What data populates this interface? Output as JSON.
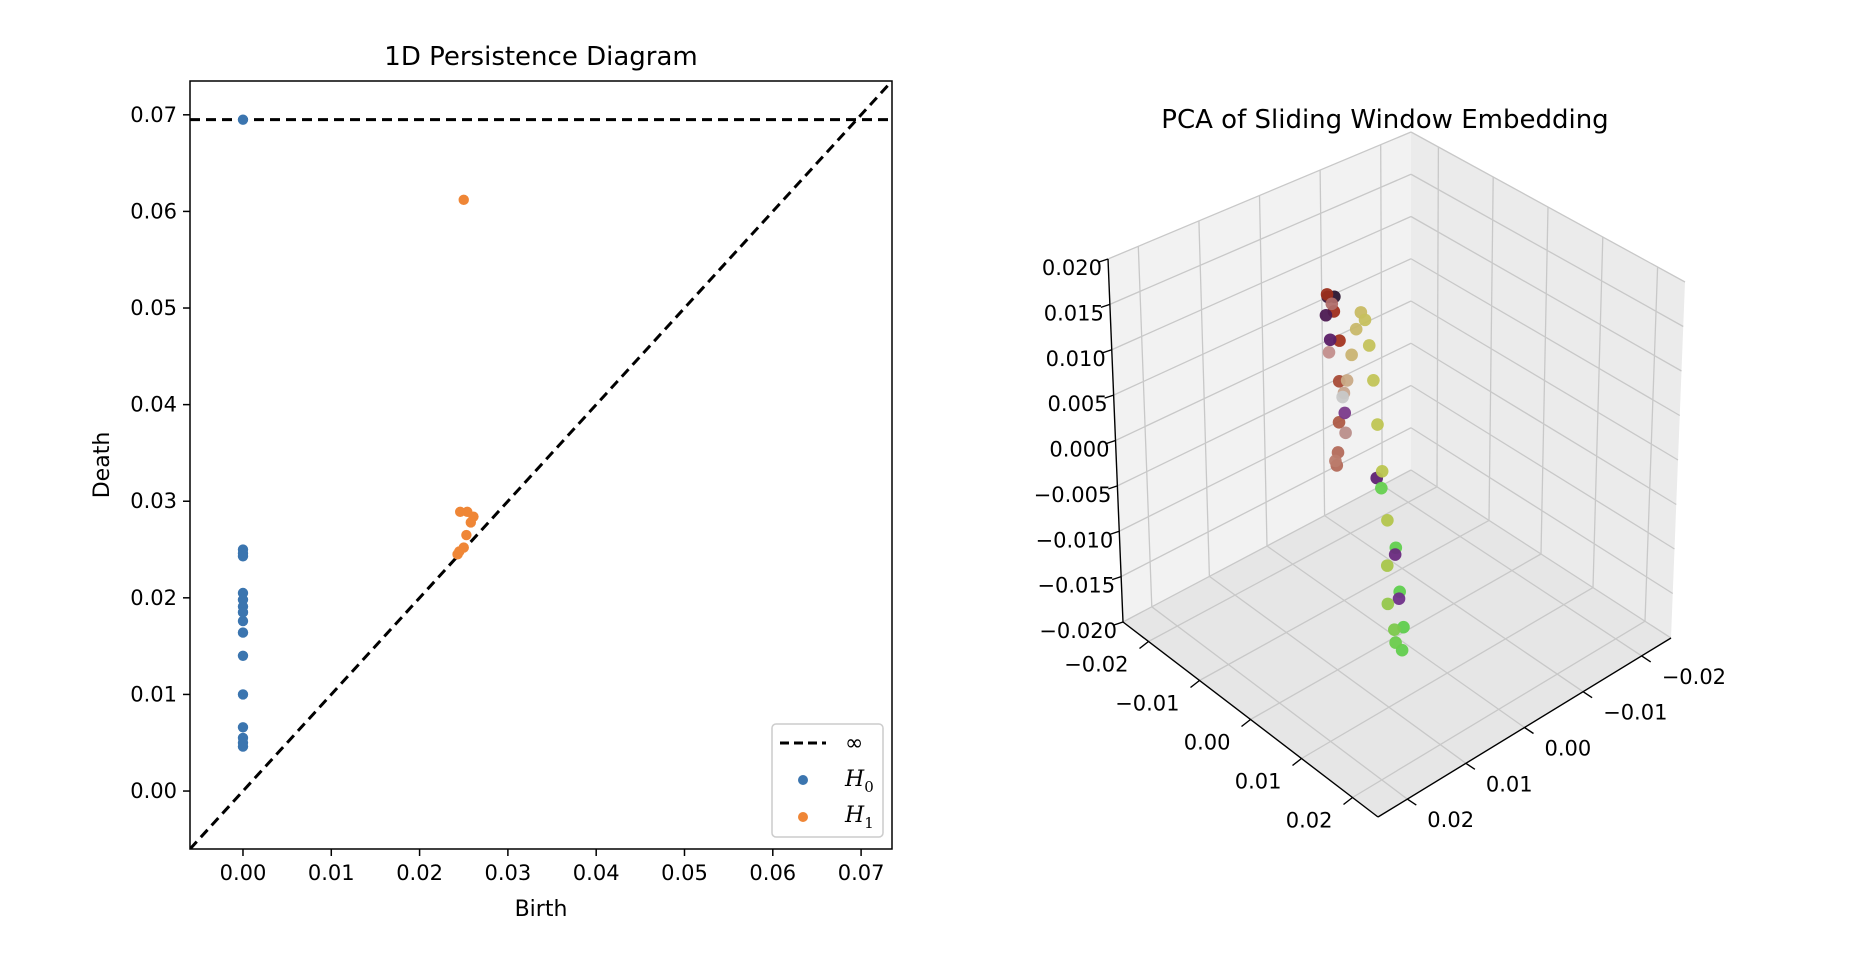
{
  "colors": {
    "h0": "#3b75af",
    "h1": "#ef8636",
    "axis": "#000000",
    "pane_left": "#f2f2f2",
    "pane_right": "#ebebeb",
    "pane_floor": "#e6e6e6",
    "grid3d": "#c8c8c8"
  },
  "chart_data": [
    {
      "type": "scatter",
      "title": "1D Persistence Diagram",
      "xlabel": "Birth",
      "ylabel": "Death",
      "xlim": [
        -0.006,
        0.0735
      ],
      "ylim": [
        -0.006,
        0.0735
      ],
      "xticks": [
        0.0,
        0.01,
        0.02,
        0.03,
        0.04,
        0.05,
        0.06,
        0.07
      ],
      "yticks": [
        0.0,
        0.01,
        0.02,
        0.03,
        0.04,
        0.05,
        0.06,
        0.07
      ],
      "xtick_labels": [
        "0.00",
        "0.01",
        "0.02",
        "0.03",
        "0.04",
        "0.05",
        "0.06",
        "0.07"
      ],
      "ytick_labels": [
        "0.00",
        "0.01",
        "0.02",
        "0.03",
        "0.04",
        "0.05",
        "0.06",
        "0.07"
      ],
      "infinity_line": 0.0695,
      "diagonal": true,
      "legend_position": "lower-right",
      "legend": [
        {
          "label": "∞",
          "kind": "dashed-line"
        },
        {
          "label": "H",
          "subscript": "0",
          "kind": "point",
          "series": "H0"
        },
        {
          "label": "H",
          "subscript": "1",
          "kind": "point",
          "series": "H1"
        }
      ],
      "series": [
        {
          "name": "H0",
          "points": [
            [
              0.0,
              0.0695
            ],
            [
              0.0,
              0.025
            ],
            [
              0.0,
              0.0246
            ],
            [
              0.0,
              0.0243
            ],
            [
              0.0,
              0.0205
            ],
            [
              0.0,
              0.0198
            ],
            [
              0.0,
              0.0191
            ],
            [
              0.0,
              0.0185
            ],
            [
              0.0,
              0.0176
            ],
            [
              0.0,
              0.0164
            ],
            [
              0.0,
              0.014
            ],
            [
              0.0,
              0.01
            ],
            [
              0.0,
              0.0066
            ],
            [
              0.0,
              0.0055
            ],
            [
              0.0,
              0.005
            ],
            [
              0.0,
              0.0046
            ]
          ]
        },
        {
          "name": "H1",
          "points": [
            [
              0.025,
              0.0612
            ],
            [
              0.0246,
              0.0289
            ],
            [
              0.0254,
              0.0289
            ],
            [
              0.0261,
              0.0284
            ],
            [
              0.0258,
              0.0278
            ],
            [
              0.0253,
              0.0265
            ],
            [
              0.025,
              0.0252
            ],
            [
              0.0245,
              0.0248
            ],
            [
              0.0243,
              0.0245
            ]
          ]
        }
      ]
    },
    {
      "type": "scatter3d",
      "title": "PCA of Sliding Window Embedding",
      "xlim": [
        -0.025,
        0.025
      ],
      "ylim": [
        -0.025,
        0.025
      ],
      "zlim": [
        -0.02,
        0.02
      ],
      "xtick_labels": [
        "−0.02",
        "−0.01",
        "0.00",
        "0.01",
        "0.02"
      ],
      "ytick_labels": [
        "−0.02",
        "−0.01",
        "0.00",
        "0.01",
        "0.02"
      ],
      "ztick_labels": [
        "−0.020",
        "−0.015",
        "−0.010",
        "−0.005",
        "0.000",
        "0.005",
        "0.010",
        "0.015",
        "0.020"
      ],
      "grid": true,
      "points": [
        {
          "x": -0.013,
          "y": -0.026,
          "z": 0.004,
          "color": "#2a1630"
        },
        {
          "x": -0.011,
          "y": -0.025,
          "z": 0.005,
          "color": "#3b1a3e"
        },
        {
          "x": -0.01,
          "y": -0.024,
          "z": 0.006,
          "color": "#9a2e1b"
        },
        {
          "x": -0.009,
          "y": -0.022,
          "z": 0.006,
          "color": "#b06e6a"
        },
        {
          "x": -0.008,
          "y": -0.022,
          "z": 0.005,
          "color": "#4c1a52"
        },
        {
          "x": -0.012,
          "y": -0.025,
          "z": 0.003,
          "color": "#9f2d1c"
        },
        {
          "x": -0.006,
          "y": -0.019,
          "z": 0.004,
          "color": "#5a1d66"
        },
        {
          "x": -0.004,
          "y": -0.017,
          "z": 0.004,
          "color": "#c28e8c"
        },
        {
          "x": -0.012,
          "y": -0.024,
          "z": 0.0,
          "color": "#a3341f"
        },
        {
          "x": -0.011,
          "y": -0.023,
          "z": -0.004,
          "color": "#a84b37"
        },
        {
          "x": -0.01,
          "y": -0.022,
          "z": -0.008,
          "color": "#ad5a44"
        },
        {
          "x": -0.008,
          "y": -0.02,
          "z": -0.01,
          "color": "#b36a5a"
        },
        {
          "x": -0.006,
          "y": -0.018,
          "z": -0.01,
          "color": "#b36a5a"
        },
        {
          "x": -0.004,
          "y": -0.016,
          "z": -0.008,
          "color": "#bb7b6b"
        },
        {
          "x": -0.004,
          "y": -0.014,
          "z": -0.004,
          "color": "#b98e8a"
        },
        {
          "x": -0.003,
          "y": -0.013,
          "z": -0.001,
          "color": "#7a3a8a"
        },
        {
          "x": -0.002,
          "y": -0.012,
          "z": 0.002,
          "color": "#c6a48e"
        },
        {
          "x": 0.0,
          "y": -0.01,
          "z": 0.003,
          "color": "#c8c8c8"
        },
        {
          "x": 0.001,
          "y": -0.008,
          "z": 0.006,
          "color": "#c9aa86"
        },
        {
          "x": 0.002,
          "y": -0.006,
          "z": 0.01,
          "color": "#c9b372"
        },
        {
          "x": 0.003,
          "y": -0.004,
          "z": 0.014,
          "color": "#c8b86a"
        },
        {
          "x": 0.004,
          "y": -0.002,
          "z": 0.017,
          "color": "#c8bb63"
        },
        {
          "x": 0.006,
          "y": 0.001,
          "z": 0.018,
          "color": "#c6c05e"
        },
        {
          "x": 0.008,
          "y": 0.004,
          "z": 0.017,
          "color": "#c4c25b"
        },
        {
          "x": 0.01,
          "y": 0.007,
          "z": 0.015,
          "color": "#c2c457"
        },
        {
          "x": 0.012,
          "y": 0.01,
          "z": 0.012,
          "color": "#bfc553"
        },
        {
          "x": 0.013,
          "y": 0.012,
          "z": 0.008,
          "color": "#bac54f"
        },
        {
          "x": 0.013,
          "y": 0.013,
          "z": 0.003,
          "color": "#b3c54c"
        },
        {
          "x": 0.013,
          "y": 0.013,
          "z": -0.002,
          "color": "#a8c64a"
        },
        {
          "x": 0.012,
          "y": 0.012,
          "z": -0.007,
          "color": "#94c74b"
        },
        {
          "x": 0.01,
          "y": 0.011,
          "z": -0.011,
          "color": "#7cc94c"
        },
        {
          "x": 0.008,
          "y": 0.009,
          "z": -0.014,
          "color": "#6ccc4d"
        },
        {
          "x": 0.006,
          "y": 0.008,
          "z": -0.016,
          "color": "#62cd4e"
        },
        {
          "x": 0.004,
          "y": 0.006,
          "z": -0.015,
          "color": "#5fce4e"
        },
        {
          "x": 0.002,
          "y": 0.003,
          "z": -0.013,
          "color": "#5fcf4e"
        },
        {
          "x": 0.0,
          "y": 0.0,
          "z": -0.01,
          "color": "#62d04f"
        },
        {
          "x": -0.002,
          "y": -0.005,
          "z": -0.006,
          "color": "#66d050"
        },
        {
          "x": 0.001,
          "y": 0.001,
          "z": -0.01,
          "color": "#6a2a80"
        },
        {
          "x": 0.003,
          "y": 0.004,
          "z": -0.013,
          "color": "#70308a"
        },
        {
          "x": -0.003,
          "y": -0.007,
          "z": -0.006,
          "color": "#5e2272"
        }
      ]
    }
  ]
}
